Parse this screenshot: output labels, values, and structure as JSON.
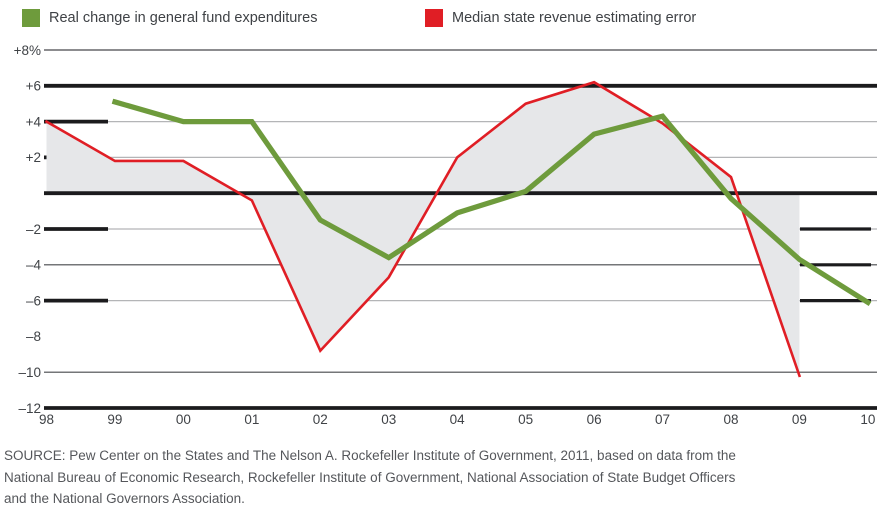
{
  "legend": {
    "items": [
      {
        "label": "Real change in general fund expenditures",
        "color": "#6e9b3c"
      },
      {
        "label": "Median state revenue estimating error",
        "color": "#e01e25"
      }
    ]
  },
  "source": {
    "full_text": "SOURCE: Pew Center on the States and The Nelson A. Rockefeller Institute of Government, 2011, based on data from the National Bureau of Economic Research, Rockefeller Institute of Government, National Association of State Budget Officers and the National Governors Association.",
    "lines": [
      "SOURCE: Pew Center on the States and The Nelson A. Rockefeller Institute of Government, 2011, based on data from the",
      "National Bureau of Economic Research, Rockefeller Institute of Government, National Association of State Budget Officers",
      "and the National Governors Association."
    ]
  },
  "chart_data": {
    "type": "line",
    "x_labels": [
      "98",
      "99",
      "00",
      "01",
      "02",
      "03",
      "04",
      "05",
      "06",
      "07",
      "08",
      "09",
      "10"
    ],
    "ylim": [
      -12,
      8
    ],
    "grid": "horizontal-only",
    "legend_position": "top",
    "colors": {
      "grid_light": "#b4b5b7",
      "grid_dark": "#47484c",
      "axis": "#1b1b1d",
      "fill": "#e6e7e9"
    },
    "yticks": [
      {
        "value": 8,
        "label": "+8%",
        "line": "thin-dark"
      },
      {
        "value": 6,
        "label": "+6",
        "line": "thick"
      },
      {
        "value": 4,
        "label": "+4",
        "line": "thin-light",
        "left_tick": true
      },
      {
        "value": 2,
        "label": "+2",
        "line": "thin-light",
        "left_tick": true
      },
      {
        "value": 0,
        "label": "",
        "line": "thick"
      },
      {
        "value": -2,
        "label": "–2",
        "line": "thin-light",
        "left_tick": true,
        "right_tick": true
      },
      {
        "value": -4,
        "label": "–4",
        "line": "thin-dark",
        "right_tick": true
      },
      {
        "value": -6,
        "label": "–6",
        "line": "thin-light",
        "left_tick": true,
        "right_tick": true
      },
      {
        "value": -8,
        "label": "–8",
        "line": "none"
      },
      {
        "value": -10,
        "label": "–10",
        "line": "thin-dark"
      },
      {
        "value": -12,
        "label": "–12",
        "line": "thick"
      }
    ],
    "series": [
      {
        "name": "Median state revenue estimating error",
        "slug": "revenue-error-line",
        "color": "#e01e25",
        "stroke_width": 2.6,
        "x_start_index": 0,
        "x": [
          "98",
          "99",
          "00",
          "01",
          "02",
          "03",
          "04",
          "05",
          "06",
          "07",
          "08",
          "09"
        ],
        "values": [
          4.0,
          1.8,
          1.8,
          -0.4,
          -8.8,
          -4.7,
          2.0,
          5.0,
          6.2,
          3.9,
          0.9,
          -10.2
        ],
        "fill_to_zero": true,
        "fill_color": "#e6e7e9"
      },
      {
        "name": "Real change in general fund expenditures",
        "slug": "expenditures-line",
        "color": "#6e9b3c",
        "stroke_width": 5.2,
        "x_start_index": 1,
        "x": [
          "99",
          "00",
          "01",
          "02",
          "03",
          "04",
          "05",
          "06",
          "07",
          "08",
          "09",
          "10"
        ],
        "values": [
          5.1,
          4.0,
          4.0,
          -1.5,
          -3.6,
          -1.1,
          0.1,
          3.3,
          4.3,
          -0.3,
          -3.7,
          -6.1
        ]
      }
    ]
  }
}
